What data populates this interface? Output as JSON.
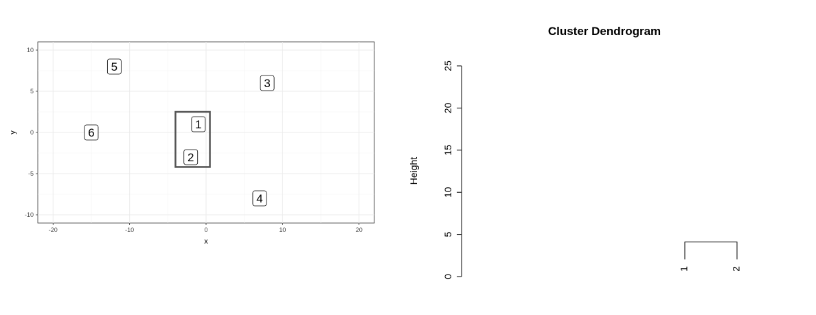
{
  "chart_data": [
    {
      "type": "scatter",
      "title": "",
      "xlabel": "x",
      "ylabel": "y",
      "xlim": [
        -22,
        22
      ],
      "ylim": [
        -11,
        11
      ],
      "x_ticks": [
        -20,
        -10,
        0,
        10,
        20
      ],
      "y_ticks": [
        -10,
        -5,
        0,
        5,
        10
      ],
      "grid": true,
      "points": [
        {
          "label": "1",
          "x": -1,
          "y": 1
        },
        {
          "label": "2",
          "x": -2,
          "y": -3
        },
        {
          "label": "3",
          "x": 8,
          "y": 6
        },
        {
          "label": "4",
          "x": 7,
          "y": -8
        },
        {
          "label": "5",
          "x": -12,
          "y": 8
        },
        {
          "label": "6",
          "x": -15,
          "y": 0
        }
      ],
      "highlight_box": {
        "x": [
          -4,
          0.5
        ],
        "y": [
          -4.2,
          2.5
        ]
      }
    },
    {
      "type": "dendrogram",
      "title": "Cluster Dendrogram",
      "ylabel": "Height",
      "ylim": [
        0,
        25
      ],
      "y_ticks": [
        "0",
        "5",
        "10",
        "15",
        "20",
        "25"
      ],
      "leaves": [
        "1",
        "2"
      ],
      "merges": [
        {
          "left": "1",
          "right": "2",
          "height": 4.1
        }
      ]
    }
  ]
}
